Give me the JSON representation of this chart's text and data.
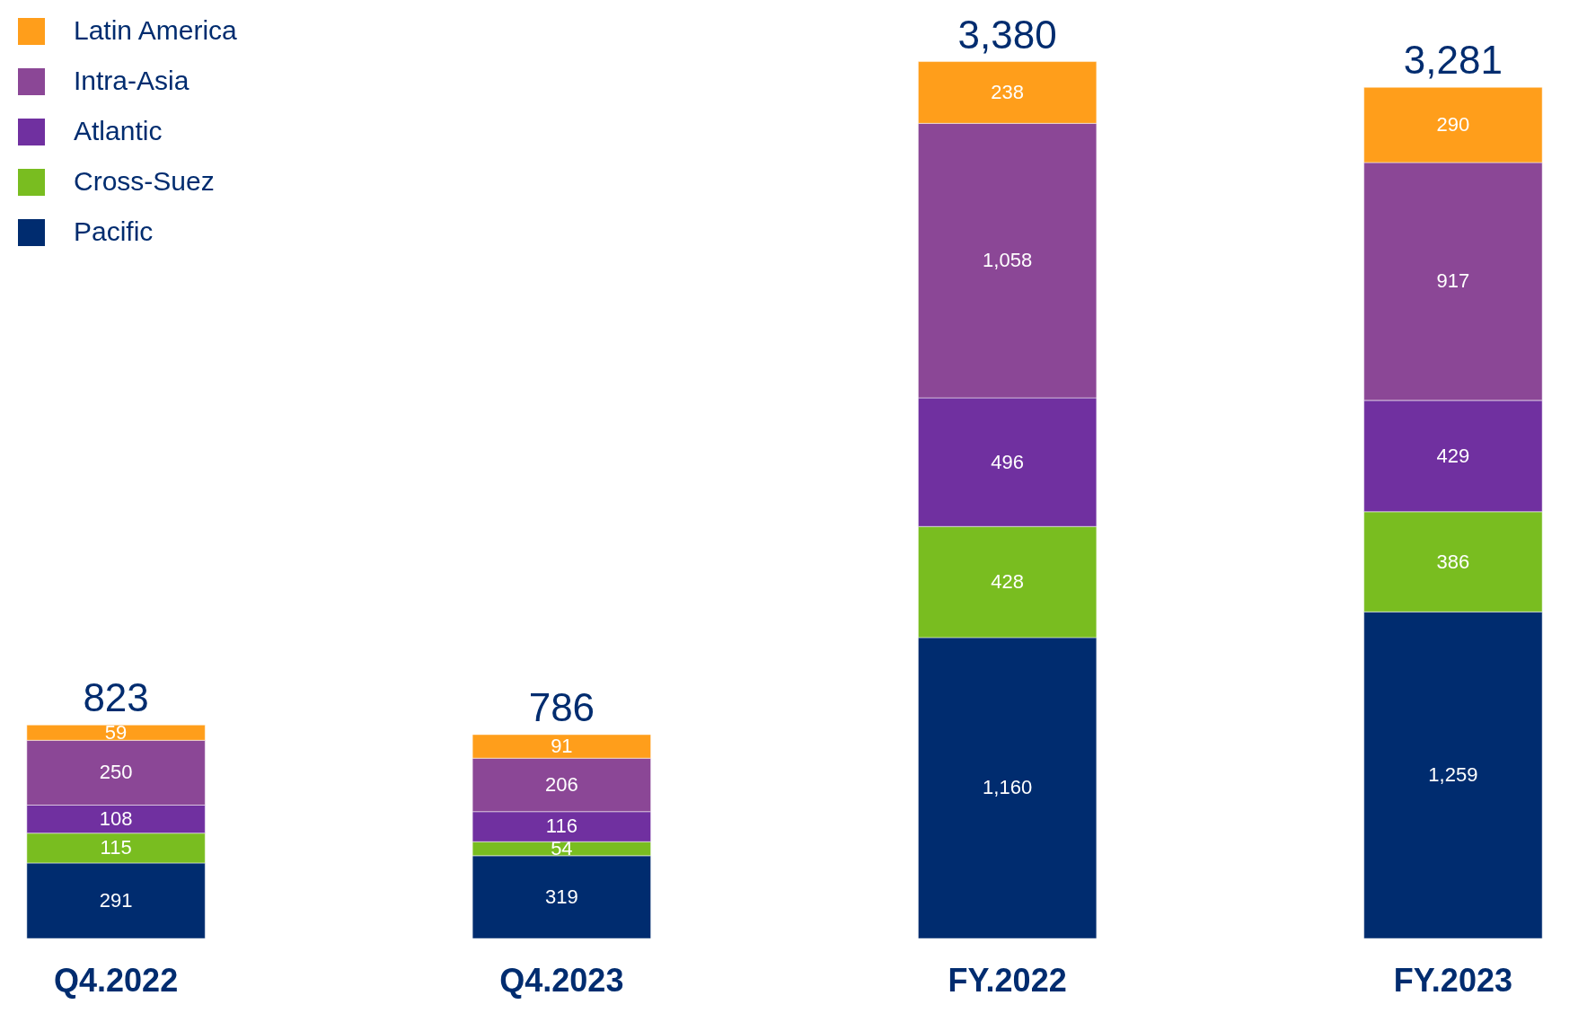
{
  "chart_data": {
    "type": "bar",
    "stacked": true,
    "legend": "top left",
    "grid": false,
    "categories": [
      "Q4.2022",
      "Q4.2023",
      "FY.2022",
      "FY.2023"
    ],
    "series": [
      {
        "name": "Pacific",
        "color": "#002c6f",
        "values": [
          291,
          319,
          1160,
          1259
        ],
        "value_labels": [
          "291",
          "319",
          "1,160",
          "1,259"
        ]
      },
      {
        "name": "Cross-Suez",
        "color": "#79bd20",
        "values": [
          115,
          54,
          428,
          386
        ],
        "value_labels": [
          "115",
          "54",
          "428",
          "386"
        ]
      },
      {
        "name": "Atlantic",
        "color": "#7030a0",
        "values": [
          108,
          116,
          496,
          429
        ],
        "value_labels": [
          "108",
          "116",
          "496",
          "429"
        ]
      },
      {
        "name": "Intra-Asia",
        "color": "#8b4796",
        "values": [
          250,
          206,
          1058,
          917
        ],
        "value_labels": [
          "250",
          "206",
          "1,058",
          "917"
        ]
      },
      {
        "name": "Latin America",
        "color": "#ff9e1b",
        "values": [
          59,
          91,
          238,
          290
        ],
        "value_labels": [
          "59",
          "91",
          "238",
          "290"
        ]
      }
    ],
    "totals": [
      "823",
      "786",
      "3,380",
      "3,281"
    ]
  }
}
